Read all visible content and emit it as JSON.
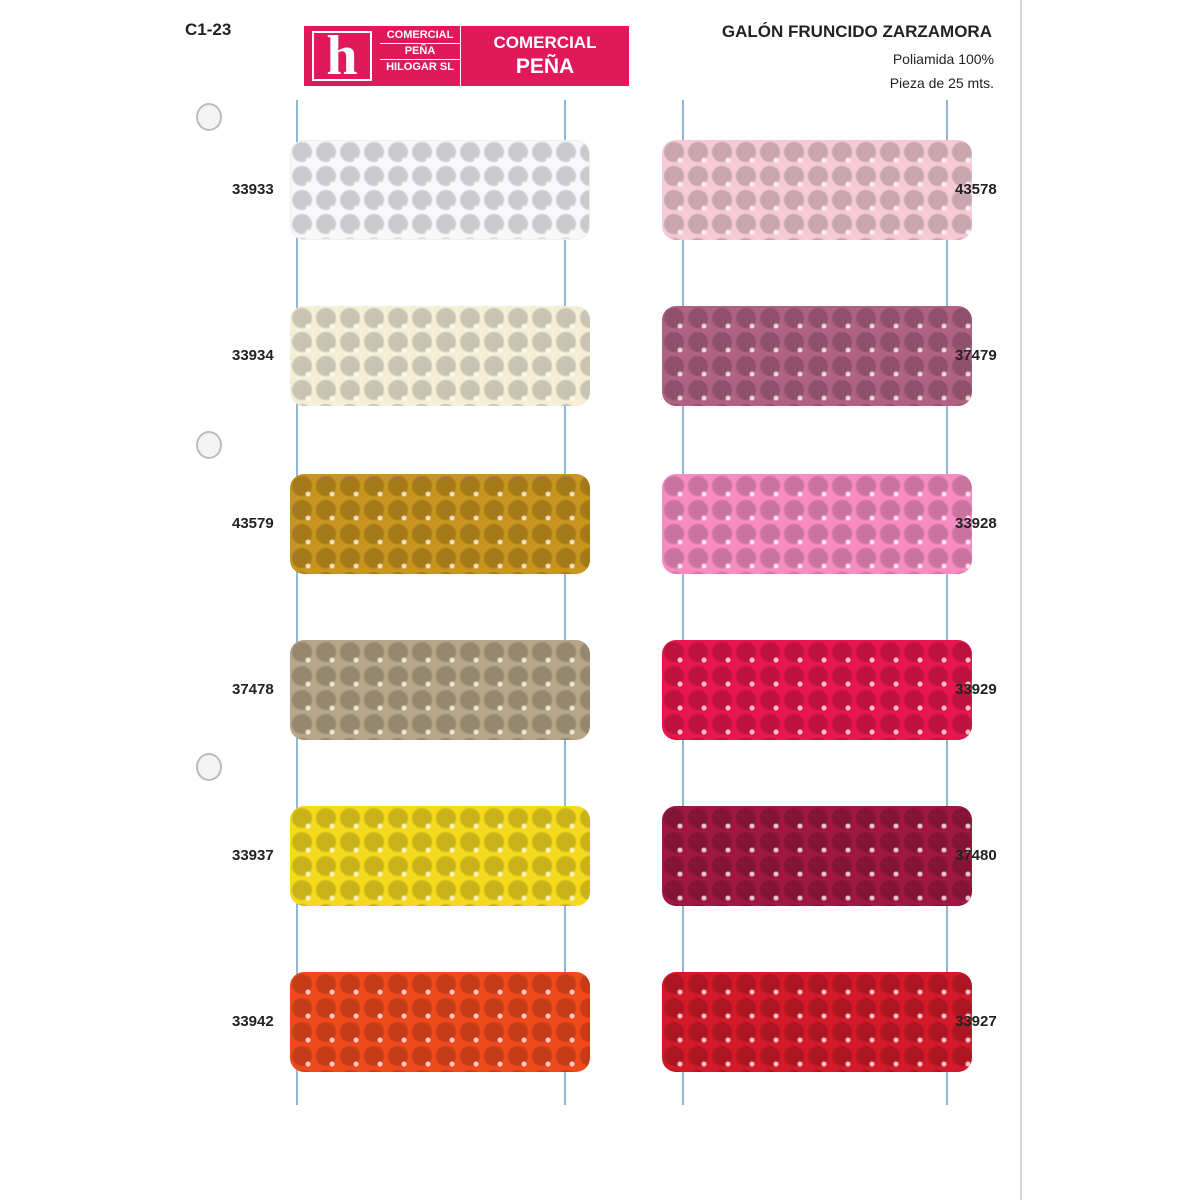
{
  "header": {
    "code": "C1-23",
    "title": "GALÓN FRUNCIDO  ZARZAMORA",
    "material": "Poliamida 100%",
    "piece": "Pieza de 25 mts."
  },
  "logo": {
    "letter": "h",
    "small_lines": [
      "COMERCIAL",
      "PEÑA",
      "HILOGAR SL"
    ],
    "big_lines": [
      "COMERCIAL",
      "PEÑA"
    ],
    "color": "#e0195a"
  },
  "swatches_left": [
    {
      "ref": "33933",
      "color": "#f8f8fa"
    },
    {
      "ref": "33934",
      "color": "#f5efd8"
    },
    {
      "ref": "43579",
      "color": "#c8951e"
    },
    {
      "ref": "37478",
      "color": "#b7a688"
    },
    {
      "ref": "33937",
      "color": "#f6da1e"
    },
    {
      "ref": "33942",
      "color": "#f04a1c"
    }
  ],
  "swatches_right": [
    {
      "ref": "43578",
      "color": "#f5c9d5"
    },
    {
      "ref": "37479",
      "color": "#b06282"
    },
    {
      "ref": "33928",
      "color": "#f78cc2"
    },
    {
      "ref": "33929",
      "color": "#e8164c"
    },
    {
      "ref": "37480",
      "color": "#a01842"
    },
    {
      "ref": "33927",
      "color": "#d41a2a"
    }
  ]
}
